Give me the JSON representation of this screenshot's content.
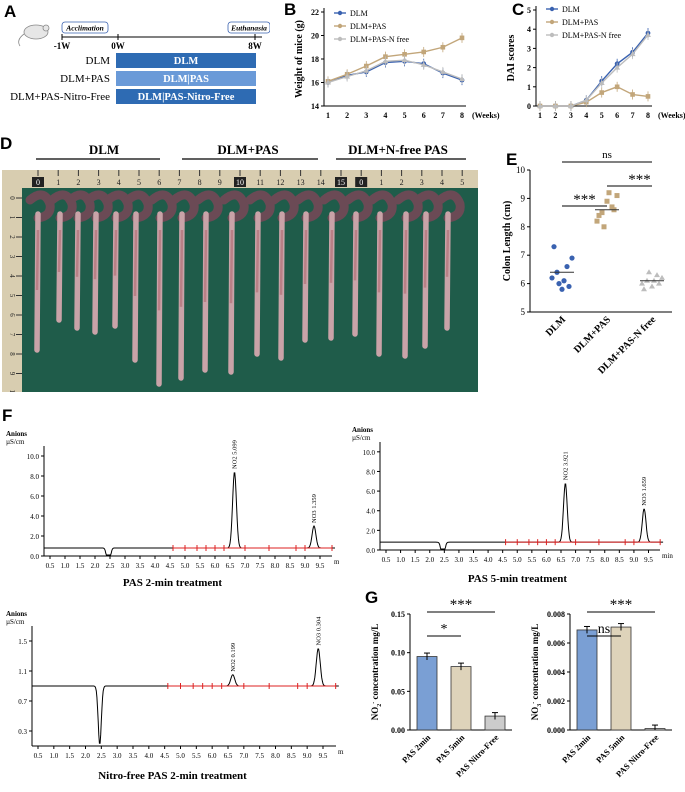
{
  "panel_labels": {
    "a": "A",
    "b": "B",
    "c": "C",
    "d": "D",
    "e": "E",
    "f": "F",
    "g": "G"
  },
  "panelA": {
    "acclimation": "Acclimation",
    "euthanasia": "Euthanasia",
    "t_minus1": "-1W",
    "t0": "0W",
    "t8": "8W",
    "groups": [
      {
        "name": "DLM",
        "bar": "DLM"
      },
      {
        "name": "DLM+PAS",
        "bar": "DLM|PAS"
      },
      {
        "name": "DLM+PAS-Nitro-Free",
        "bar": "DLM|PAS-Nitro-Free"
      }
    ]
  },
  "panelD": {
    "groups": [
      "DLM",
      "DLM+PAS",
      "DLM+N-free PAS"
    ],
    "ruler_top": [
      "0",
      "1",
      "2",
      "3",
      "4",
      "5",
      "6",
      "7",
      "8",
      "9",
      "10",
      "11",
      "12",
      "13",
      "14",
      "15",
      "0",
      "1",
      "2",
      "3",
      "4",
      "5"
    ],
    "ruler_side": [
      "0",
      "1",
      "2",
      "3",
      "4",
      "5",
      "6",
      "7",
      "8",
      "9",
      "10"
    ]
  },
  "colors": {
    "dlm": "#3a62b0",
    "pas": "#c2a67a",
    "nfree": "#bdbdbd",
    "bar_dark": "#2e6bb3",
    "bar_light": "#6a9ad8",
    "green": "#1f5c4a"
  },
  "chart_data": [
    {
      "id": "B",
      "type": "line",
      "ylabel": "Weight of mice (g)",
      "xlabel": "(Weeks)",
      "x": [
        1,
        2,
        3,
        4,
        5,
        6,
        7,
        8
      ],
      "ylim": [
        14,
        22
      ],
      "yticks": [
        14,
        16,
        18,
        20,
        22
      ],
      "series": [
        {
          "name": "DLM",
          "values": [
            16.0,
            16.6,
            16.9,
            17.7,
            17.8,
            17.6,
            16.8,
            16.2
          ]
        },
        {
          "name": "DLM+PAS",
          "values": [
            16.1,
            16.7,
            17.4,
            18.2,
            18.4,
            18.6,
            19.0,
            19.8
          ]
        },
        {
          "name": "DLM+PAS-N free",
          "values": [
            16.0,
            16.5,
            17.0,
            17.8,
            17.9,
            17.5,
            16.9,
            16.3
          ]
        }
      ]
    },
    {
      "id": "C",
      "type": "line",
      "ylabel": "DAI scores",
      "xlabel": "(Weeks)",
      "x": [
        1,
        2,
        3,
        4,
        5,
        6,
        7,
        8
      ],
      "ylim": [
        0,
        5
      ],
      "yticks": [
        0,
        1,
        2,
        3,
        4,
        5
      ],
      "series": [
        {
          "name": "DLM",
          "values": [
            0,
            0,
            0,
            0.3,
            1.3,
            2.2,
            2.8,
            3.8
          ]
        },
        {
          "name": "DLM+PAS",
          "values": [
            0,
            0,
            0,
            0.2,
            0.7,
            1.0,
            0.6,
            0.5
          ]
        },
        {
          "name": "DLM+PAS-N free",
          "values": [
            0,
            0,
            0,
            0.3,
            1.2,
            2.0,
            2.7,
            3.7
          ]
        }
      ]
    },
    {
      "id": "E",
      "type": "scatter",
      "ylabel": "Colon Length (cm)",
      "ylim": [
        5,
        10
      ],
      "yticks": [
        5,
        6,
        7,
        8,
        9,
        10
      ],
      "categories": [
        "DLM",
        "DLM+PAS",
        "DLM+PAS-N free"
      ],
      "groups": [
        {
          "name": "DLM",
          "mean": 6.4,
          "points": [
            6.2,
            6.4,
            5.8,
            6.6,
            6.9,
            7.3,
            6.0,
            6.1,
            5.9
          ]
        },
        {
          "name": "DLM+PAS",
          "mean": 8.6,
          "points": [
            8.2,
            8.5,
            8.9,
            8.7,
            9.1,
            8.4,
            8.0,
            9.2,
            8.6
          ]
        },
        {
          "name": "DLM+PAS-N free",
          "mean": 6.1,
          "points": [
            6.0,
            6.1,
            5.9,
            6.3,
            6.2,
            5.8,
            6.4,
            6.1,
            6.0
          ]
        }
      ],
      "sig": [
        {
          "label": "ns"
        },
        {
          "label": "***"
        },
        {
          "label": "***"
        }
      ]
    },
    {
      "id": "F1",
      "type": "line",
      "title": "PAS 2-min treatment",
      "unit_top": "Anions",
      "unit": "µS/cm",
      "xunit": "min",
      "yticks": [
        "0.0",
        "2.0",
        "4.0",
        "6.0",
        "8.0",
        "10.0"
      ],
      "ylim": [
        0,
        11
      ],
      "xticks": [
        "0.5",
        "1.0",
        "1.5",
        "2.0",
        "2.5",
        "3.0",
        "3.5",
        "4.0",
        "4.5",
        "5.0",
        "5.5",
        "6.0",
        "6.5",
        "7.0",
        "7.5",
        "8.0",
        "8.5",
        "9.0",
        "9.5"
      ],
      "peaks": [
        {
          "label": "NO2 5.099",
          "t": 6.65,
          "h": 8.4
        },
        {
          "label": "NO3 1.359",
          "t": 9.3,
          "h": 3.0
        }
      ],
      "dip": {
        "t": 2.45,
        "h": -0.5
      }
    },
    {
      "id": "F2",
      "type": "line",
      "title": "PAS 5-min treatment",
      "unit_top": "Anions",
      "unit": "µS/cm",
      "xunit": "min",
      "yticks": [
        "0.0",
        "2.0",
        "4.0",
        "6.0",
        "8.0",
        "10.0"
      ],
      "ylim": [
        0,
        11
      ],
      "xticks": [
        "0.5",
        "1.0",
        "1.5",
        "2.0",
        "2.5",
        "3.0",
        "3.5",
        "4.0",
        "4.5",
        "5.0",
        "5.5",
        "6.0",
        "6.5",
        "7.0",
        "7.5",
        "8.0",
        "8.5",
        "9.0",
        "9.5"
      ],
      "peaks": [
        {
          "label": "NO2 3.921",
          "t": 6.65,
          "h": 6.8
        },
        {
          "label": "NO3 1.659",
          "t": 9.35,
          "h": 4.2
        }
      ],
      "dip": {
        "t": 2.45,
        "h": -0.5
      }
    },
    {
      "id": "F3",
      "type": "line",
      "title": "Nitro-free PAS 2-min treatment",
      "unit_top": "Anions",
      "unit": "µS/cm",
      "xunit": "min",
      "yticks": [
        "0.3",
        "0.7",
        "1.1",
        "1.5"
      ],
      "ylim": [
        0.1,
        1.7
      ],
      "xticks": [
        "0.5",
        "1.0",
        "1.5",
        "2.0",
        "2.5",
        "3.0",
        "3.5",
        "4.0",
        "4.5",
        "5.0",
        "5.5",
        "6.0",
        "6.5",
        "7.0",
        "7.5",
        "8.0",
        "8.5",
        "9.0",
        "9.5"
      ],
      "peaks": [
        {
          "label": "NO2 0.199",
          "t": 6.65,
          "h": 1.05
        },
        {
          "label": "NO3 0.304",
          "t": 9.35,
          "h": 1.4
        }
      ],
      "dip": {
        "t": 2.45,
        "h": 0.12
      }
    },
    {
      "id": "G1",
      "type": "bar",
      "ylabel": "NO2- concentration mg/L",
      "ylabel_main": "NO",
      "ylabel_sub": "2",
      "ylabel_sup": "-",
      "ylabel_rest": " concentration mg/L",
      "categories": [
        "PAS 2min",
        "PAS 5min",
        "PAS Nitro-Free"
      ],
      "values": [
        0.095,
        0.082,
        0.018
      ],
      "ylim": [
        0,
        0.15
      ],
      "yticks": [
        "0.00",
        "0.05",
        "0.10",
        "0.15"
      ],
      "sig": [
        {
          "label": "***"
        },
        {
          "label": "*"
        }
      ]
    },
    {
      "id": "G2",
      "type": "bar",
      "ylabel": "NO3- concentration mg/L",
      "ylabel_main": "NO",
      "ylabel_sub": "3",
      "ylabel_sup": "-",
      "ylabel_rest": " concentration mg/L",
      "categories": [
        "PAS 2min",
        "PAS 5min",
        "PAS Nitro-Free"
      ],
      "values": [
        0.0069,
        0.0071,
        0.0001
      ],
      "ylim": [
        0,
        0.008
      ],
      "yticks": [
        "0.000",
        "0.002",
        "0.004",
        "0.006",
        "0.008"
      ],
      "sig": [
        {
          "label": "***"
        },
        {
          "label": "ns"
        }
      ]
    }
  ]
}
